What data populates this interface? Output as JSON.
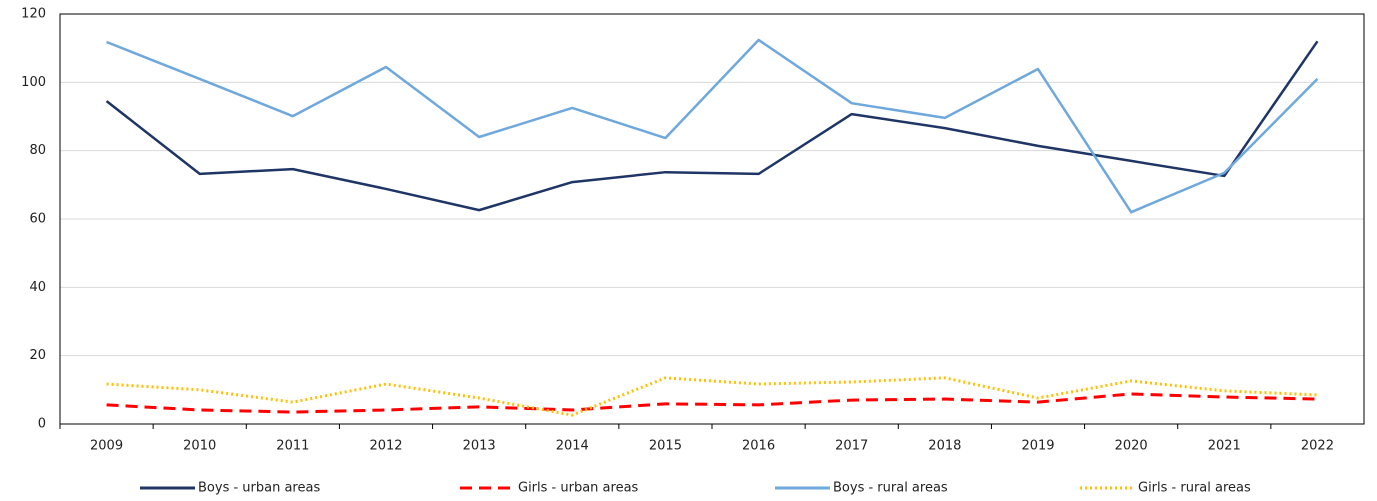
{
  "chart_data": {
    "type": "line",
    "categories": [
      "2009",
      "2010",
      "2011",
      "2012",
      "2013",
      "2014",
      "2015",
      "2016",
      "2017",
      "2018",
      "2019",
      "2020",
      "2021",
      "2022"
    ],
    "series": [
      {
        "name": "Boys - urban areas",
        "color": "#1f3566",
        "dash": "solid",
        "values": [
          94.5,
          73.2,
          74.6,
          68.8,
          62.6,
          70.8,
          73.7,
          73.2,
          90.7,
          86.6,
          81.4,
          77,
          72.6,
          112
        ]
      },
      {
        "name": "Girls - urban areas",
        "color": "#ff0000",
        "dash": "dashed",
        "values": [
          5.6,
          4.1,
          3.5,
          4.1,
          5,
          4.1,
          5.9,
          5.6,
          7,
          7.3,
          6.4,
          8.8,
          7.9,
          7.3
        ]
      },
      {
        "name": "Boys - rural areas",
        "color": "#6fa8dc",
        "dash": "solid",
        "values": [
          111.8,
          101,
          90.1,
          104.5,
          84,
          92.5,
          83.7,
          112.4,
          93.9,
          89.6,
          103.9,
          62,
          73.5,
          101
        ]
      },
      {
        "name": "Girls - rural areas",
        "color": "#ffc000",
        "dash": "dotted",
        "values": [
          11.7,
          10,
          6.4,
          11.7,
          7.6,
          2.6,
          13.5,
          11.7,
          12.3,
          13.5,
          7.6,
          12.6,
          9.7,
          8.5
        ]
      }
    ],
    "ylim": [
      0,
      120
    ],
    "yticks": [
      0,
      20,
      40,
      60,
      80,
      100,
      120
    ],
    "grid": true,
    "legend": "bottom"
  }
}
